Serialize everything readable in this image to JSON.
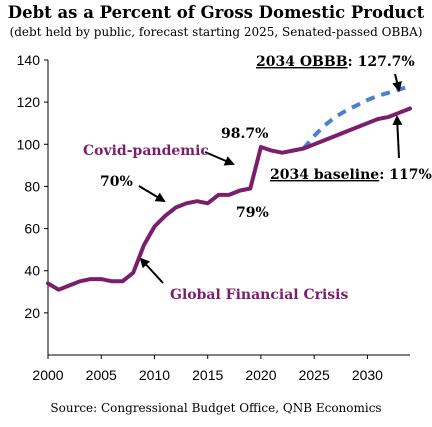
{
  "chart_data": {
    "type": "line",
    "title": "Debt as a Percent of Gross Domestic Product",
    "subtitle": "(debt held by public, forecast starting 2025, Senated-passed OBBA)",
    "source": "Source: Congressional Budget Office, QNB Economics",
    "xlim": [
      2000,
      2034
    ],
    "ylim": [
      0,
      140
    ],
    "x_ticks": [
      2000,
      2005,
      2010,
      2015,
      2020,
      2025,
      2030
    ],
    "y_ticks": [
      20,
      40,
      60,
      80,
      100,
      120,
      140
    ],
    "grid": false,
    "colors": {
      "baseline": "#7b1e6e",
      "obbb": "#4a7fd1",
      "text": "#000000"
    },
    "series": [
      {
        "name": "baseline",
        "style": "solid",
        "color": "#7b1e6e",
        "x": [
          2000,
          2001,
          2002,
          2003,
          2004,
          2005,
          2006,
          2007,
          2008,
          2009,
          2010,
          2011,
          2012,
          2013,
          2014,
          2015,
          2016,
          2017,
          2018,
          2019,
          2020,
          2021,
          2022,
          2023,
          2024,
          2025,
          2026,
          2027,
          2028,
          2029,
          2030,
          2031,
          2032,
          2033,
          2034
        ],
        "values": [
          34,
          31,
          33,
          35,
          36,
          36,
          35,
          35,
          39,
          52,
          61,
          66,
          70,
          72,
          73,
          72,
          76,
          76,
          78,
          79,
          98.7,
          97,
          96,
          97,
          98,
          100,
          102,
          104,
          106,
          108,
          110,
          112,
          113,
          115,
          117
        ]
      },
      {
        "name": "OBBB",
        "style": "dashed",
        "color": "#4a7fd1",
        "x": [
          2024,
          2025,
          2026,
          2027,
          2028,
          2029,
          2030,
          2031,
          2032,
          2033,
          2034
        ],
        "values": [
          98,
          104,
          109,
          113,
          116,
          118.5,
          121,
          123,
          124.5,
          126,
          127.7
        ]
      }
    ],
    "annotations": [
      {
        "text": "2034 OBBB",
        "suffix": ": 127.7%",
        "underline": true,
        "color": "#000000"
      },
      {
        "text": "98.7%",
        "color": "#000000"
      },
      {
        "text": "Covid-pandemic",
        "color": "#7b1e6e"
      },
      {
        "text": "70%",
        "color": "#000000"
      },
      {
        "text": "79%",
        "color": "#000000"
      },
      {
        "text": "2034 baseline",
        "suffix": ": 117%",
        "underline": true,
        "color": "#000000"
      },
      {
        "text": "Global Financial Crisis",
        "color": "#7b1e6e"
      }
    ]
  }
}
